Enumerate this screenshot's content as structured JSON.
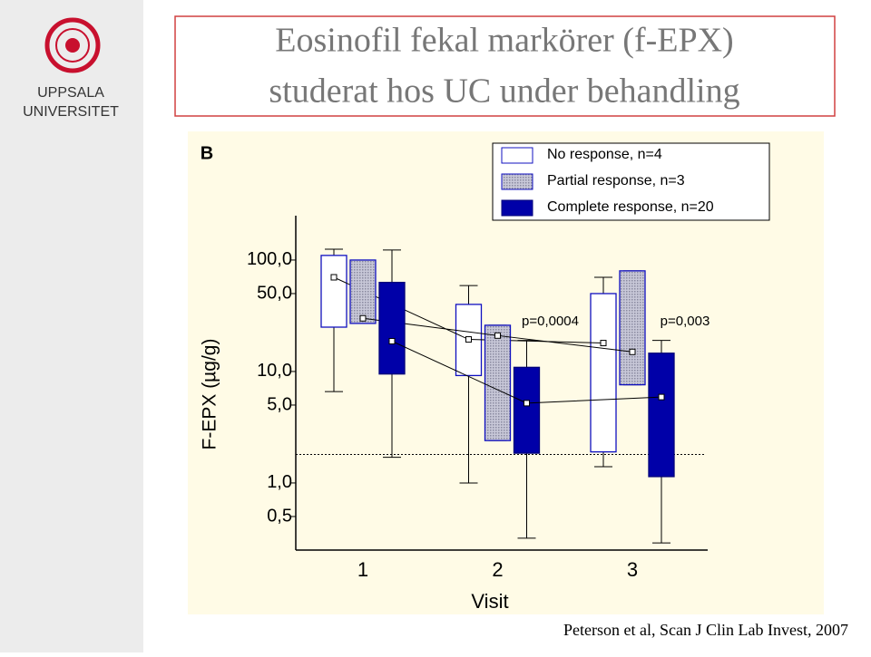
{
  "slide": {
    "title_line1": "Eosinofil fekal markörer (f-EPX)",
    "title_line2": "studerat hos UC under behandling",
    "logo_line1": "UPPSALA",
    "logo_line2": "UNIVERSITET",
    "panel_label": "B",
    "citation": "Peterson et al, Scan  J Clin Lab Invest, 2007"
  },
  "chart_data": {
    "type": "box",
    "x_label": "Visit",
    "y_label": "F-EPX (µg/g)",
    "log_scale": true,
    "categories": [
      "1",
      "2",
      "3"
    ],
    "ylim": [
      0.25,
      250
    ],
    "yticks": [
      {
        "value": 0.5,
        "label": "0,5"
      },
      {
        "value": 1,
        "label": "1,0"
      },
      {
        "value": 5,
        "label": "5,0"
      },
      {
        "value": 10,
        "label": "10,0"
      },
      {
        "value": 50,
        "label": "50,0"
      },
      {
        "value": 100,
        "label": "100,0"
      }
    ],
    "reference_line": 1.8,
    "series": [
      {
        "name": "No response,  n=4",
        "fill": "#ffffff",
        "stroke": "#1010c0",
        "whisker_low": [
          6.6,
          1.0,
          1.4
        ],
        "q1": [
          25,
          9.2,
          1.9
        ],
        "q3": [
          110,
          40,
          50
        ],
        "whisker_high": [
          125,
          59,
          70
        ],
        "mean": [
          70,
          19.4,
          18
        ]
      },
      {
        "name": "Partial response,   n=3",
        "fill": "#b4b4c8",
        "stroke": "#1010c0",
        "whisker_low": [
          27,
          2.4,
          7.6
        ],
        "q1": [
          27,
          2.4,
          7.6
        ],
        "q3": [
          100,
          26,
          80
        ],
        "whisker_high": [
          100,
          26,
          80
        ],
        "mean": [
          30,
          21,
          15
        ]
      },
      {
        "name": "Complete response, n=20",
        "fill": "#0000a8",
        "stroke": "#00007a",
        "whisker_low": [
          1.7,
          0.32,
          0.29
        ],
        "q1": [
          9.5,
          1.85,
          1.14
        ],
        "q3": [
          63,
          10.9,
          14.6
        ],
        "whisker_high": [
          123,
          19,
          19
        ],
        "mean": [
          18.7,
          5.2,
          5.9
        ]
      }
    ],
    "annotations": [
      {
        "text": "p=0,0004",
        "category": 1
      },
      {
        "text": "p=0,003",
        "category": 2
      }
    ]
  }
}
